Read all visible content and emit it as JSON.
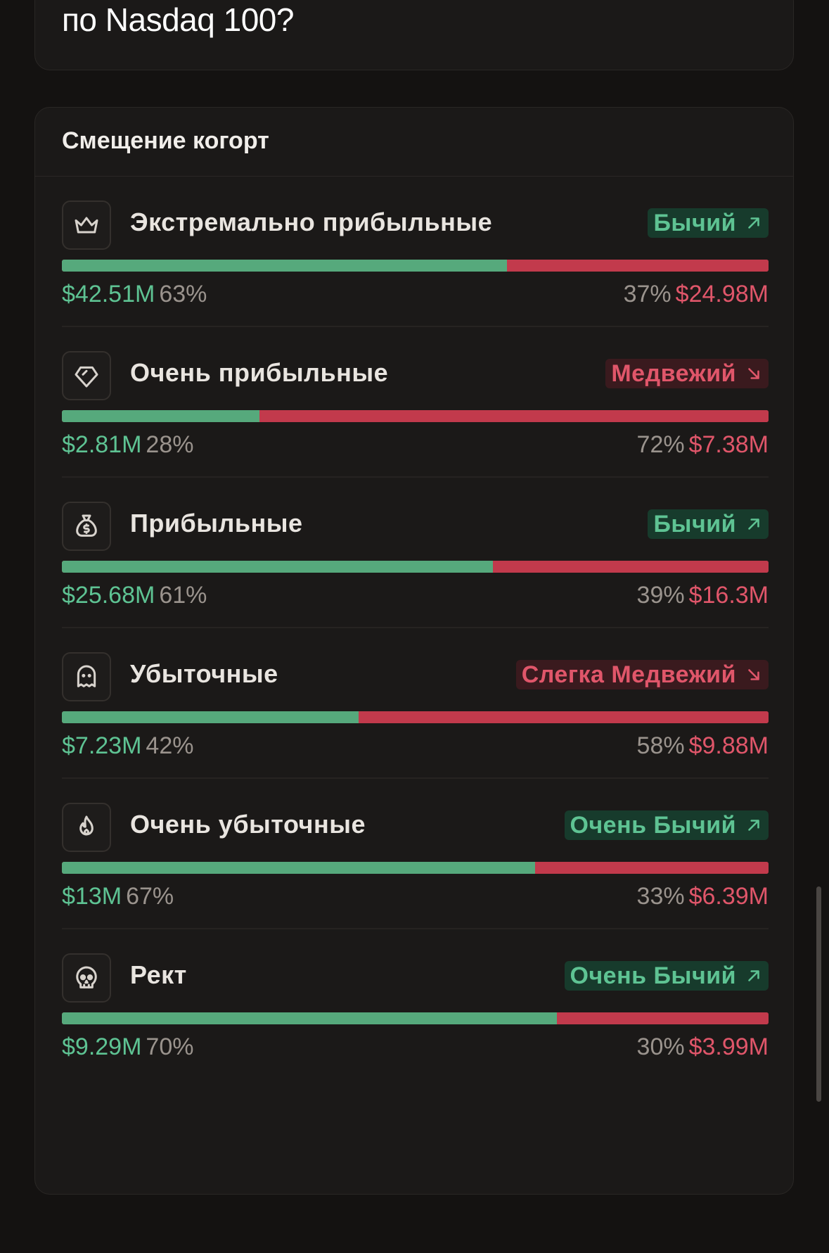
{
  "top_card": {
    "question": "по Nasdaq 100?"
  },
  "section": {
    "title": "Смещение когорт"
  },
  "colors": {
    "green": "#56a97c",
    "red": "#c23a4c",
    "bull_badge_bg": "#173b2c",
    "bear_badge_bg": "#3a1a1e"
  },
  "cohorts": [
    {
      "icon": "crown-icon",
      "name": "Экстремально прибыльные",
      "sentiment": "Бычий",
      "direction": "up",
      "long_amount": "$42.51M",
      "long_pct": "63%",
      "short_pct": "37%",
      "short_amount": "$24.98M",
      "long_fraction": 0.63
    },
    {
      "icon": "diamond-icon",
      "name": "Очень прибыльные",
      "sentiment": "Медвежий",
      "direction": "down",
      "long_amount": "$2.81M",
      "long_pct": "28%",
      "short_pct": "72%",
      "short_amount": "$7.38M",
      "long_fraction": 0.28
    },
    {
      "icon": "money-bag-icon",
      "name": "Прибыльные",
      "sentiment": "Бычий",
      "direction": "up",
      "long_amount": "$25.68M",
      "long_pct": "61%",
      "short_pct": "39%",
      "short_amount": "$16.3M",
      "long_fraction": 0.61
    },
    {
      "icon": "ghost-icon",
      "name": "Убыточные",
      "sentiment": "Слегка Медвежий",
      "direction": "down",
      "long_amount": "$7.23M",
      "long_pct": "42%",
      "short_pct": "58%",
      "short_amount": "$9.88M",
      "long_fraction": 0.42
    },
    {
      "icon": "flame-icon",
      "name": "Очень убыточные",
      "sentiment": "Очень Бычий",
      "direction": "up",
      "long_amount": "$13M",
      "long_pct": "67%",
      "short_pct": "33%",
      "short_amount": "$6.39M",
      "long_fraction": 0.67
    },
    {
      "icon": "skull-icon",
      "name": "Рект",
      "sentiment": "Очень Бычий",
      "direction": "up",
      "long_amount": "$9.29M",
      "long_pct": "70%",
      "short_pct": "30%",
      "short_amount": "$3.99M",
      "long_fraction": 0.7
    }
  ]
}
